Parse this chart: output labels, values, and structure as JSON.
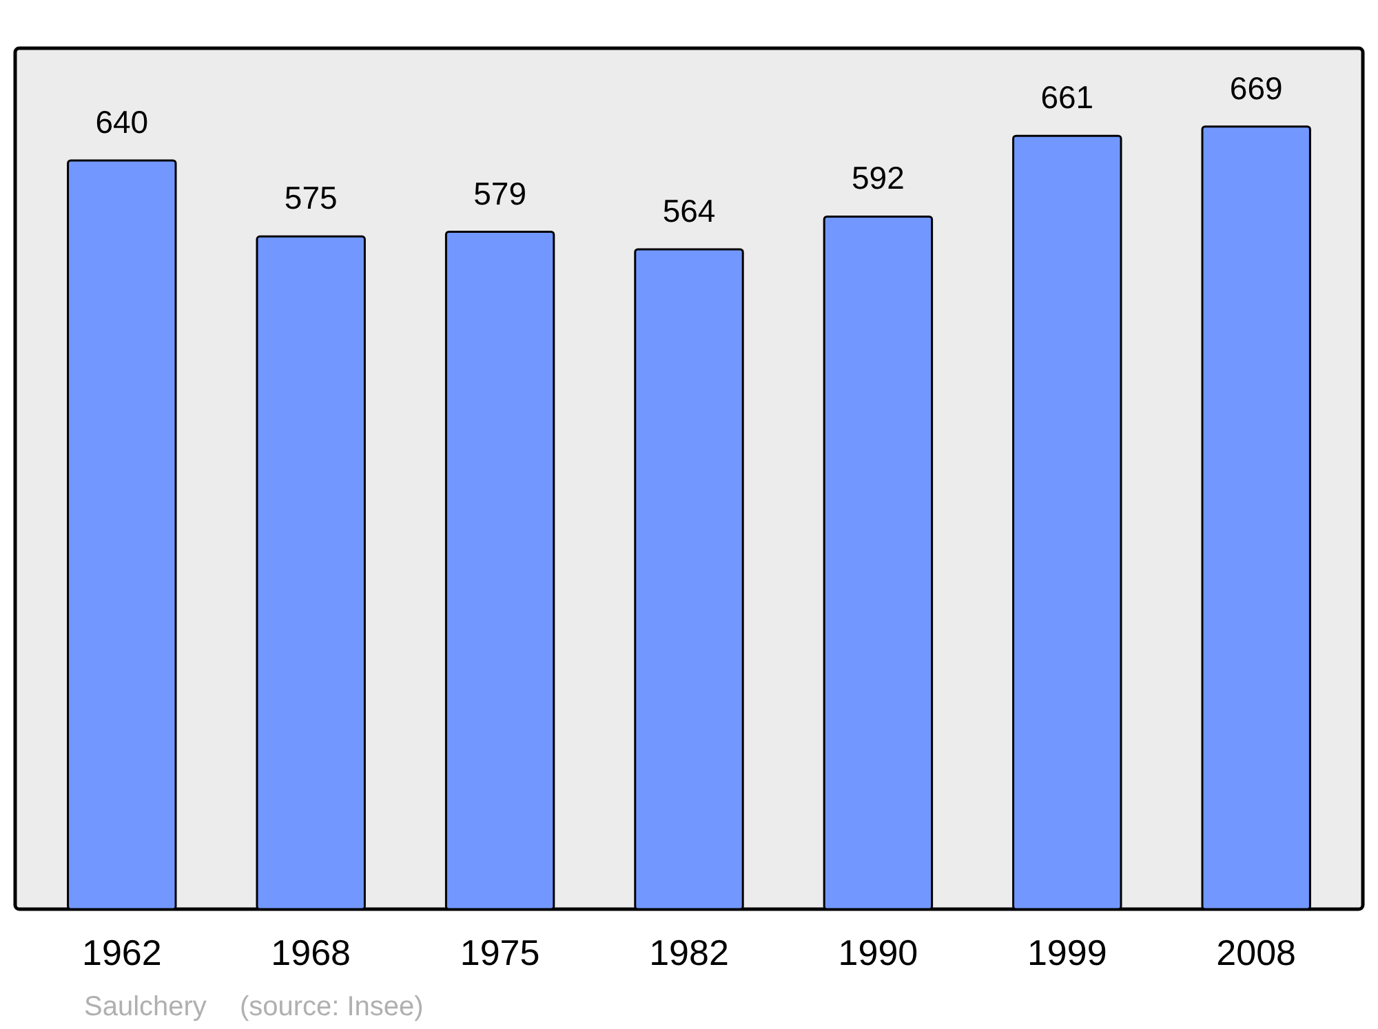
{
  "chart_data": {
    "type": "bar",
    "categories": [
      "1962",
      "1968",
      "1975",
      "1982",
      "1990",
      "1999",
      "2008"
    ],
    "values": [
      640,
      575,
      579,
      564,
      592,
      661,
      669
    ],
    "color": "#7298ff",
    "data_labels": true,
    "annotations": [
      "Saulchery",
      "(source: Insee)"
    ]
  }
}
